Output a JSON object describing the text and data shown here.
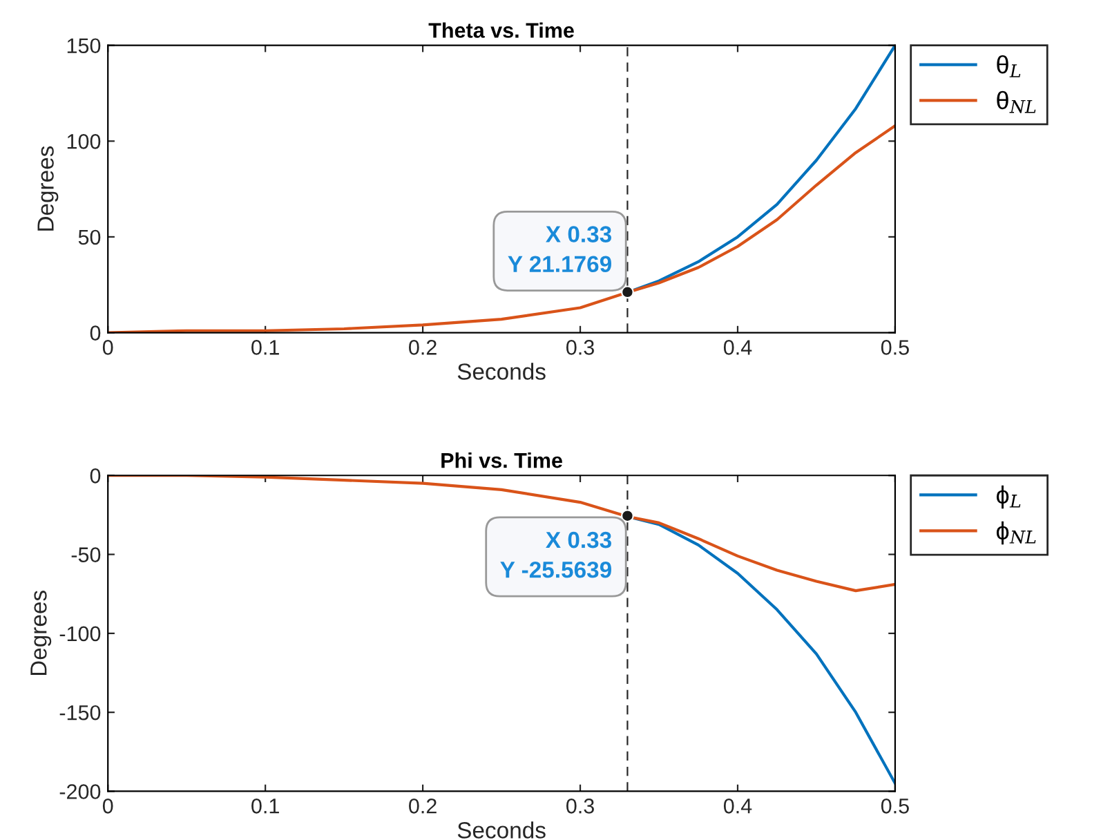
{
  "chart_data": [
    {
      "type": "line",
      "title": "Theta vs. Time",
      "xlabel": "Seconds",
      "ylabel": "Degrees",
      "x": [
        0,
        0.05,
        0.1,
        0.15,
        0.2,
        0.25,
        0.3,
        0.33,
        0.35,
        0.375,
        0.4,
        0.425,
        0.45,
        0.475,
        0.5
      ],
      "series": [
        {
          "name": "θ$_{L}$",
          "color": "#0072bd",
          "values": [
            null,
            null,
            null,
            null,
            null,
            null,
            null,
            21,
            27,
            37,
            50,
            67,
            90,
            117,
            150
          ]
        },
        {
          "name": "θ$_{NL}$",
          "color": "#d95319",
          "values": [
            0,
            1,
            1,
            2,
            4,
            7,
            13,
            21,
            26,
            34,
            45,
            59,
            77,
            94,
            108
          ]
        }
      ],
      "xlim": [
        0,
        0.5
      ],
      "xticks": [
        0,
        0.1,
        0.2,
        0.3,
        0.4,
        0.5
      ],
      "ylim": [
        0,
        150
      ],
      "yticks": [
        0,
        50,
        100,
        150
      ],
      "ref_lines": [
        {
          "axis": "x",
          "value": 0.33,
          "color": "#262626",
          "line_style": "dashed"
        }
      ],
      "annotations": [
        {
          "text": "X 0.33\nY 21.1769",
          "x": 0.33,
          "y": 21.1769
        }
      ],
      "legend": "top right",
      "grid": false,
      "line_style": "solid",
      "marker": "none"
    },
    {
      "type": "line",
      "title": "Phi vs. Time",
      "xlabel": "Seconds",
      "ylabel": "Degrees",
      "x": [
        0,
        0.05,
        0.1,
        0.15,
        0.2,
        0.25,
        0.3,
        0.33,
        0.35,
        0.375,
        0.4,
        0.425,
        0.45,
        0.475,
        0.5
      ],
      "series": [
        {
          "name": "ϕ$_{L}$",
          "color": "#0072bd",
          "values": [
            null,
            null,
            null,
            null,
            null,
            null,
            null,
            -26,
            -31,
            -44,
            -62,
            -85,
            -113,
            -150,
            -195
          ]
        },
        {
          "name": "ϕ$_{NL}$",
          "color": "#d95319",
          "values": [
            0,
            0,
            -1,
            -3,
            -5,
            -9,
            -17,
            -26,
            -30,
            -40,
            -51,
            -60,
            -67,
            -73,
            -69
          ]
        }
      ],
      "xlim": [
        0,
        0.5
      ],
      "xticks": [
        0,
        0.1,
        0.2,
        0.3,
        0.4,
        0.5
      ],
      "ylim": [
        -200,
        0
      ],
      "yticks": [
        -200,
        -150,
        -100,
        -50,
        0
      ],
      "ref_lines": [
        {
          "axis": "x",
          "value": 0.33,
          "color": "#262626",
          "line_style": "dashed"
        }
      ],
      "annotations": [
        {
          "text": "X 0.33\nY -25.5639",
          "x": 0.33,
          "y": -25.5639
        }
      ],
      "legend": "top right",
      "grid": false,
      "line_style": "solid",
      "marker": "none"
    }
  ]
}
